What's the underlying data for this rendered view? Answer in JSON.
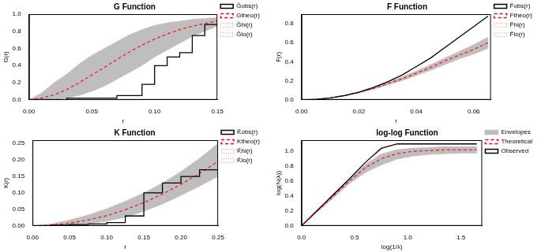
{
  "chart_data": [
    {
      "type": "line",
      "title": "G Function",
      "x_label": "r",
      "y_label": "G(r)",
      "x": [
        0,
        0.01,
        0.02,
        0.03,
        0.04,
        0.05,
        0.06,
        0.07,
        0.08,
        0.09,
        0.1,
        0.11,
        0.12,
        0.13,
        0.14,
        0.15
      ],
      "series": [
        {
          "name": "Ĝobs(r)",
          "color": "#000000",
          "line_style": "steps",
          "values": [
            0,
            0,
            0,
            0,
            0.02,
            0.02,
            0.02,
            0.02,
            0.05,
            0.05,
            0.18,
            0.4,
            0.5,
            0.55,
            0.75,
            0.88
          ]
        },
        {
          "name": "Gtheo(r)",
          "color": "#ff0000",
          "line_style": "dashed",
          "values": [
            0,
            0.02,
            0.06,
            0.12,
            0.2,
            0.29,
            0.38,
            0.47,
            0.56,
            0.64,
            0.71,
            0.77,
            0.82,
            0.86,
            0.89,
            0.92
          ]
        },
        {
          "name": "Ĝhi(r)",
          "color": "#f0a0a0",
          "line_style": "dotted",
          "type": "band_hi",
          "values": [
            0,
            0.08,
            0.2,
            0.3,
            0.42,
            0.52,
            0.6,
            0.68,
            0.76,
            0.82,
            0.87,
            0.9,
            0.92,
            0.94,
            0.95,
            0.96
          ]
        },
        {
          "name": "Ĝlo(r)",
          "color": "#f0a0a0",
          "line_style": "dotted",
          "type": "band_lo",
          "values": [
            0,
            0,
            0,
            0.02,
            0.05,
            0.1,
            0.16,
            0.24,
            0.32,
            0.4,
            0.5,
            0.58,
            0.66,
            0.74,
            0.8,
            0.86
          ]
        }
      ],
      "band": {
        "color": "#bebebe"
      },
      "xlim": [
        0,
        0.15
      ],
      "xticks": [
        {
          "value": 0,
          "label": "0.00"
        },
        0.05,
        {
          "value": 0.1,
          "label": "0.10"
        },
        0.15
      ],
      "ylim": [
        0,
        1
      ],
      "yticks": [
        {
          "value": 0,
          "label": "0.0"
        },
        0.2,
        0.4,
        0.6,
        0.8,
        {
          "value": 1,
          "label": "1.0"
        }
      ],
      "grid": false,
      "legend": "right"
    },
    {
      "type": "line",
      "title": "F Function",
      "x_label": "r",
      "y_label": "F(r)",
      "x": [
        0,
        0.005,
        0.01,
        0.015,
        0.02,
        0.025,
        0.03,
        0.035,
        0.04,
        0.045,
        0.05,
        0.055,
        0.06,
        0.065
      ],
      "series": [
        {
          "name": "F̂obs(r)",
          "color": "#000000",
          "line_style": "solid",
          "values": [
            0,
            0.005,
            0.02,
            0.045,
            0.08,
            0.13,
            0.19,
            0.26,
            0.35,
            0.44,
            0.55,
            0.66,
            0.77,
            0.88
          ]
        },
        {
          "name": "Ftheo(r)",
          "color": "#ff0000",
          "line_style": "dashed",
          "values": [
            0,
            0.005,
            0.02,
            0.045,
            0.08,
            0.12,
            0.17,
            0.22,
            0.28,
            0.34,
            0.41,
            0.47,
            0.53,
            0.6
          ]
        },
        {
          "name": "F̂hi(r)",
          "color": "#f0a0a0",
          "line_style": "dotted",
          "type": "band_hi",
          "values": [
            0,
            0.006,
            0.022,
            0.05,
            0.088,
            0.133,
            0.186,
            0.24,
            0.305,
            0.37,
            0.44,
            0.51,
            0.58,
            0.66
          ]
        },
        {
          "name": "F̂lo(r)",
          "color": "#f0a0a0",
          "line_style": "dotted",
          "type": "band_lo",
          "values": [
            0,
            0.004,
            0.018,
            0.04,
            0.072,
            0.108,
            0.155,
            0.2,
            0.255,
            0.31,
            0.37,
            0.43,
            0.48,
            0.54
          ]
        }
      ],
      "band": {
        "color": "#bebebe"
      },
      "xlim": [
        0,
        0.066
      ],
      "xticks": [
        {
          "value": 0,
          "label": "0.00"
        },
        0.02,
        0.04,
        0.06
      ],
      "ylim": [
        0,
        0.9
      ],
      "yticks": [
        {
          "value": 0,
          "label": "0.0"
        },
        0.2,
        0.4,
        0.6,
        0.8
      ],
      "grid": false,
      "legend": "right"
    },
    {
      "type": "line",
      "title": "K Function",
      "x_label": "r",
      "y_label": "K(r)",
      "x": [
        0,
        0.025,
        0.05,
        0.075,
        0.1,
        0.125,
        0.15,
        0.175,
        0.2,
        0.225,
        0.25
      ],
      "series": [
        {
          "name": "K̂obs(r)",
          "color": "#000000",
          "line_style": "steps",
          "values": [
            0,
            0,
            0.002,
            0.004,
            0.006,
            0.01,
            0.03,
            0.1,
            0.13,
            0.15,
            0.17
          ]
        },
        {
          "name": "Ktheo(r)",
          "color": "#ff0000",
          "line_style": "dashed",
          "values": [
            0,
            0.002,
            0.008,
            0.018,
            0.031,
            0.049,
            0.071,
            0.096,
            0.126,
            0.159,
            0.196
          ]
        },
        {
          "name": "K̂hi(r)",
          "color": "#f0a0a0",
          "line_style": "dotted",
          "type": "band_hi",
          "values": [
            0,
            0.006,
            0.018,
            0.033,
            0.052,
            0.075,
            0.1,
            0.13,
            0.165,
            0.205,
            0.25
          ]
        },
        {
          "name": "K̂lo(r)",
          "color": "#f0a0a0",
          "line_style": "dotted",
          "type": "band_lo",
          "values": [
            0,
            0,
            0.002,
            0.006,
            0.014,
            0.026,
            0.044,
            0.066,
            0.092,
            0.12,
            0.15
          ]
        }
      ],
      "band": {
        "color": "#bebebe"
      },
      "xlim": [
        0,
        0.25
      ],
      "xticks": [
        {
          "value": 0,
          "label": "0.00"
        },
        0.05,
        {
          "value": 0.1,
          "label": "0.10"
        },
        0.15,
        {
          "value": 0.2,
          "label": "0.20"
        },
        0.25
      ],
      "ylim": [
        0,
        0.26
      ],
      "yticks": [
        {
          "value": 0,
          "label": "0.00"
        },
        0.05,
        {
          "value": 0.1,
          "label": "0.10"
        },
        0.15,
        {
          "value": 0.2,
          "label": "0.20"
        },
        0.25
      ],
      "grid": false,
      "legend": "right"
    },
    {
      "type": "line",
      "title": "log-log Function",
      "x_label": "log(1/λ)",
      "y_label": "log(N(λ))",
      "x": [
        0,
        0.15,
        0.3,
        0.45,
        0.6,
        0.75,
        0.9,
        1.05,
        1.2,
        1.35,
        1.5,
        1.65
      ],
      "series": [
        {
          "color": "#bebebe",
          "line_style": "solid",
          "type": "band_hi",
          "values": [
            0,
            0.21,
            0.42,
            0.62,
            0.82,
            0.96,
            1.02,
            1.04,
            1.05,
            1.06,
            1.06,
            1.06
          ]
        },
        {
          "color": "#bebebe",
          "line_style": "solid",
          "type": "band_lo",
          "values": [
            0,
            0.19,
            0.38,
            0.57,
            0.72,
            0.82,
            0.9,
            0.94,
            0.96,
            0.97,
            0.98,
            0.98
          ]
        },
        {
          "name": "Theoretical",
          "color": "#ff0000",
          "line_style": "dashed",
          "values": [
            0,
            0.2,
            0.4,
            0.6,
            0.78,
            0.9,
            0.97,
            1.0,
            1.01,
            1.02,
            1.02,
            1.02
          ]
        },
        {
          "name": "Observed",
          "color": "#000000",
          "line_style": "solid",
          "values": [
            0,
            0.21,
            0.42,
            0.63,
            0.85,
            1.04,
            1.1,
            1.1,
            1.1,
            1.1,
            1.1,
            1.1
          ]
        }
      ],
      "band": {
        "color": "#bebebe",
        "name": "Envelopes"
      },
      "xlim": [
        0,
        1.7
      ],
      "xticks": [
        {
          "value": 0,
          "label": "0.0"
        },
        0.5,
        {
          "value": 1,
          "label": "1.0"
        },
        1.5
      ],
      "ylim": [
        0,
        1.15
      ],
      "yticks": [
        {
          "value": 0,
          "label": "0.0"
        },
        0.2,
        0.4,
        0.6,
        0.8,
        {
          "value": 1,
          "label": "1.0"
        }
      ],
      "grid": false,
      "legend": "right"
    }
  ]
}
